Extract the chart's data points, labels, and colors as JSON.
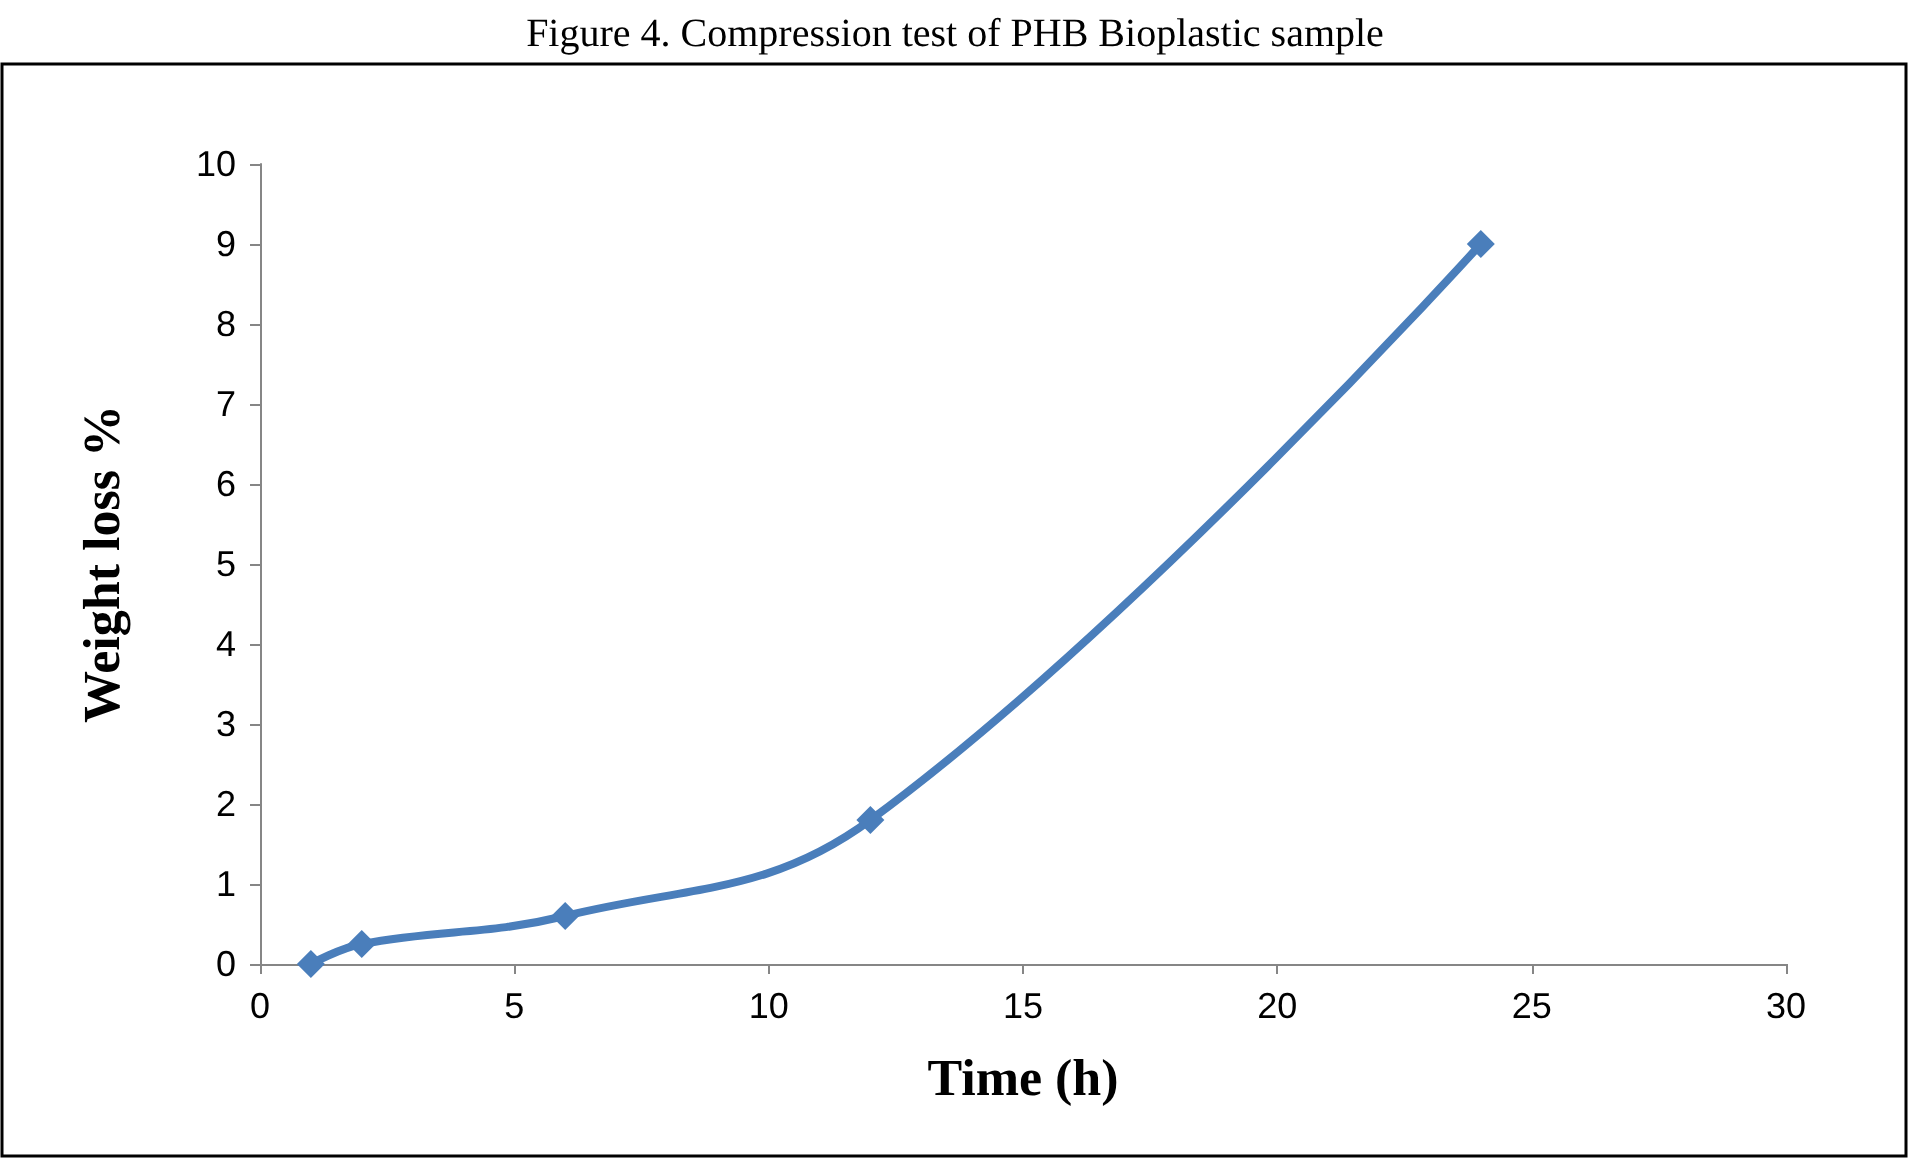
{
  "chart_data": {
    "type": "line",
    "title": "Figure 4. Compression test of PHB Bioplastic sample",
    "xlabel": "Time (h)",
    "ylabel": "Weight loss %",
    "x": [
      1,
      2,
      6,
      12,
      24
    ],
    "series": [
      {
        "color": "#4a7ebb",
        "values": [
          0,
          0.25,
          0.6,
          1.8,
          9
        ]
      }
    ],
    "xlim": [
      0,
      30
    ],
    "xticks": [
      0,
      5,
      10,
      15,
      20,
      25,
      30
    ],
    "ylim": [
      0,
      10
    ],
    "yticks": [
      0,
      1,
      2,
      3,
      4,
      5,
      6,
      7,
      8,
      9,
      10
    ],
    "marker": "diamond",
    "line_style": "solid"
  }
}
